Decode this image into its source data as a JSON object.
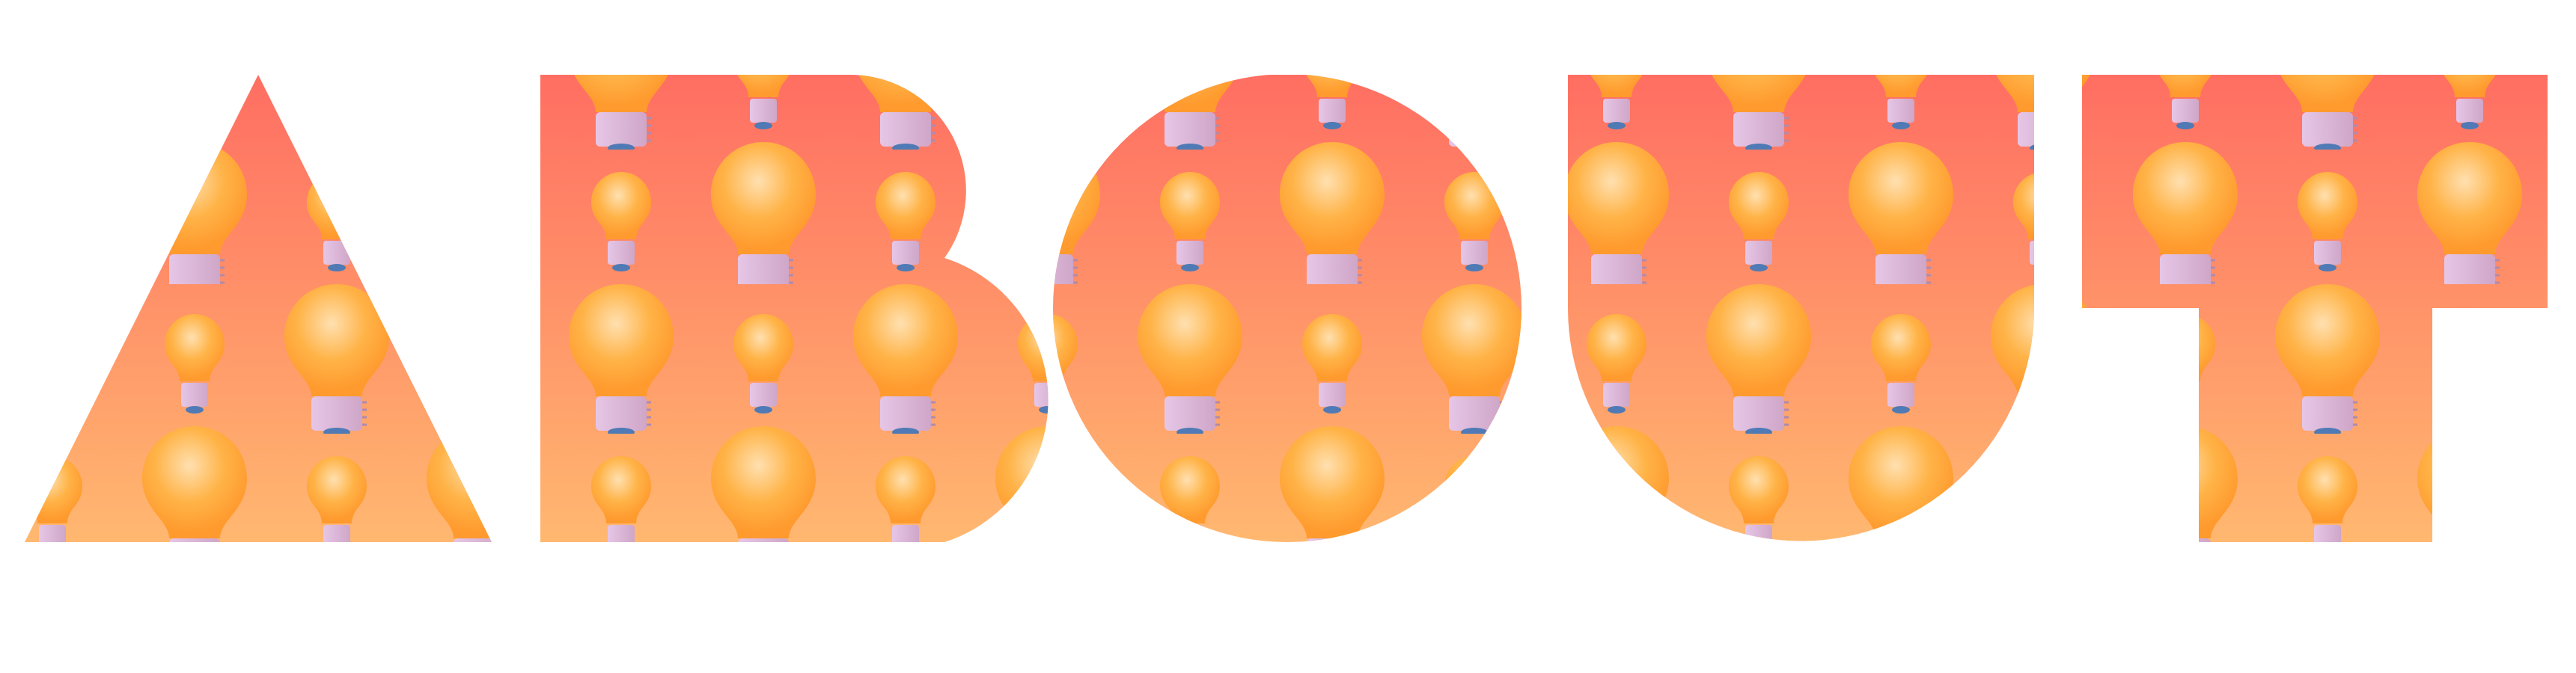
{
  "headline": {
    "text": "ABOUT",
    "letters": [
      "A",
      "B",
      "O",
      "U",
      "T"
    ]
  },
  "pattern": {
    "motif": "lightbulb-icon",
    "fill_gradient": [
      "#ff6e62",
      "#ffb870"
    ],
    "bulb_glass_colors": [
      "#ffe0b0",
      "#ffb347",
      "#ff9a2e"
    ],
    "bulb_base_colors": [
      "#e6c6e6",
      "#cfa6c8"
    ],
    "bulb_tip_color": "#4f7ab5"
  },
  "colors": {
    "background": "#ffffff"
  }
}
